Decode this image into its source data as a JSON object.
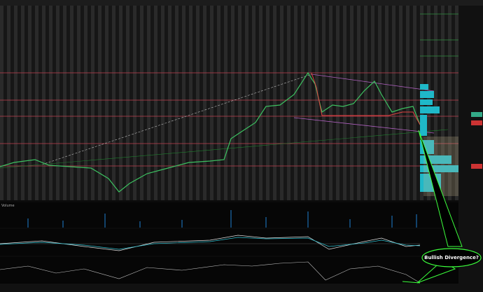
{
  "callout": {
    "text": "Bullish Divergence?"
  },
  "panels": {
    "volume": "Volume"
  }
}
